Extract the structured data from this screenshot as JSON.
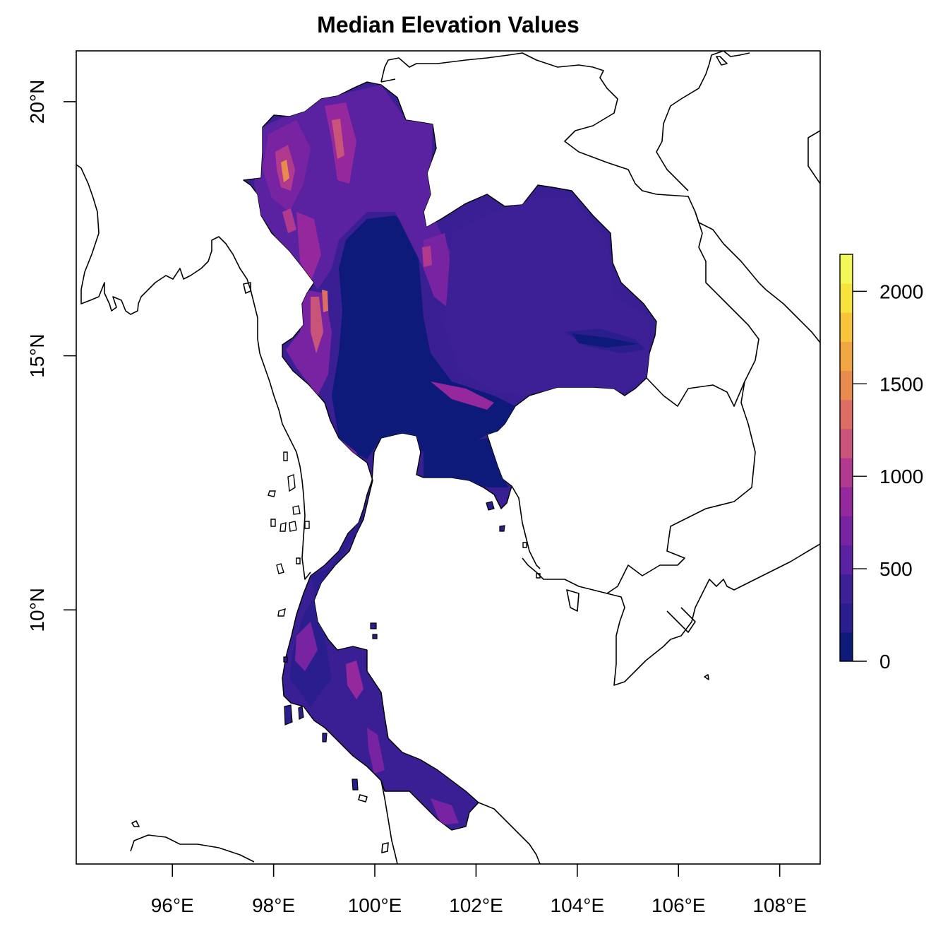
{
  "title": "Median Elevation Values",
  "x_ticks": [
    "96°E",
    "98°E",
    "100°E",
    "102°E",
    "104°E",
    "106°E",
    "108°E"
  ],
  "y_ticks": [
    "10°N",
    "15°N",
    "20°N"
  ],
  "legend": {
    "ticks": [
      "0",
      "500",
      "1000",
      "1500",
      "2000"
    ],
    "colors": [
      "#0d1a7a",
      "#2a1e8e",
      "#3d1f96",
      "#5a22a0",
      "#7824a2",
      "#95289c",
      "#b23a8e",
      "#c9547a",
      "#dc6d62",
      "#e98a4e",
      "#f2a642",
      "#f7c43c",
      "#f6e33c",
      "#f4f758"
    ]
  },
  "chart_data": {
    "type": "heatmap",
    "title": "Median Elevation Values",
    "xlabel": "",
    "ylabel": "",
    "xlim": [
      94.1,
      108.8
    ],
    "ylim": [
      5.0,
      21.0
    ],
    "x_tick_values": [
      96,
      98,
      100,
      102,
      104,
      106,
      108
    ],
    "y_tick_values": [
      10,
      15,
      20
    ],
    "colorbar_range": [
      0,
      2200
    ],
    "colorbar_ticks": [
      0,
      500,
      1000,
      1500,
      2000
    ]
  }
}
